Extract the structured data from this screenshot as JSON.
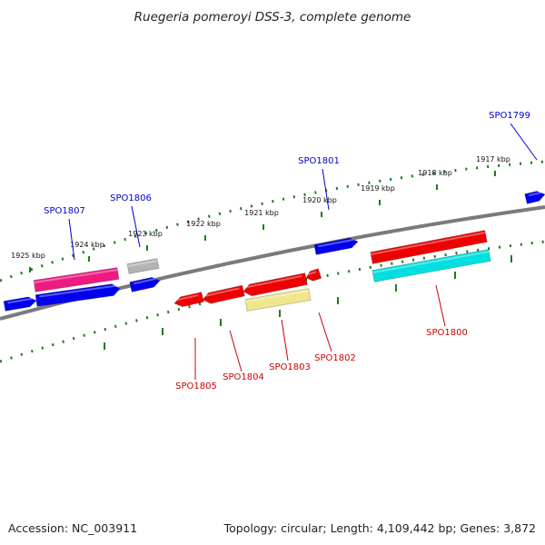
{
  "title": "Ruegeria pomeroyi DSS-3, complete genome",
  "footer": {
    "accession": "Accession: NC_003911",
    "topology": "Topology: circular; Length: 4,109,442 bp; Genes: 3,872"
  },
  "colors": {
    "background": "#ffffff",
    "backbone": "#808080",
    "tick": "#1e7a1e",
    "forward_label": "#0000cc",
    "reverse_label": "#cc0000",
    "gene_blue": "#0000ee",
    "gene_red": "#ee0000",
    "gene_pink": "#ee1a80",
    "gene_grey": "#b4b4b4",
    "gene_cyan": "#00e0e0",
    "gene_yellow": "#f0e68c"
  },
  "scale": {
    "unit": "kbp",
    "labels": [
      "1925 kbp",
      "1924 kbp",
      "1923 kbp",
      "1922 kbp",
      "1921 kbp",
      "1920 kbp",
      "1919 kbp",
      "1918 kbp",
      "1917 kbp"
    ]
  },
  "gene_labels": {
    "forward": [
      "SPO1807",
      "SPO1806",
      "SPO1801",
      "SPO1799"
    ],
    "reverse": [
      "SPO1805",
      "SPO1804",
      "SPO1803",
      "SPO1802",
      "SPO1800"
    ]
  },
  "features": [
    {
      "strand": "forward",
      "color": "blue"
    },
    {
      "strand": "forward",
      "color": "pink"
    },
    {
      "strand": "forward",
      "color": "blue"
    },
    {
      "strand": "forward",
      "color": "grey"
    },
    {
      "strand": "forward",
      "color": "blue"
    },
    {
      "strand": "forward",
      "color": "blue"
    },
    {
      "strand": "forward",
      "color": "red"
    },
    {
      "strand": "forward",
      "color": "cyan"
    },
    {
      "strand": "forward",
      "color": "blue"
    },
    {
      "strand": "reverse",
      "color": "red"
    },
    {
      "strand": "reverse",
      "color": "red"
    },
    {
      "strand": "reverse",
      "color": "red"
    },
    {
      "strand": "reverse",
      "color": "red"
    },
    {
      "strand": "reverse",
      "color": "yellow"
    }
  ]
}
